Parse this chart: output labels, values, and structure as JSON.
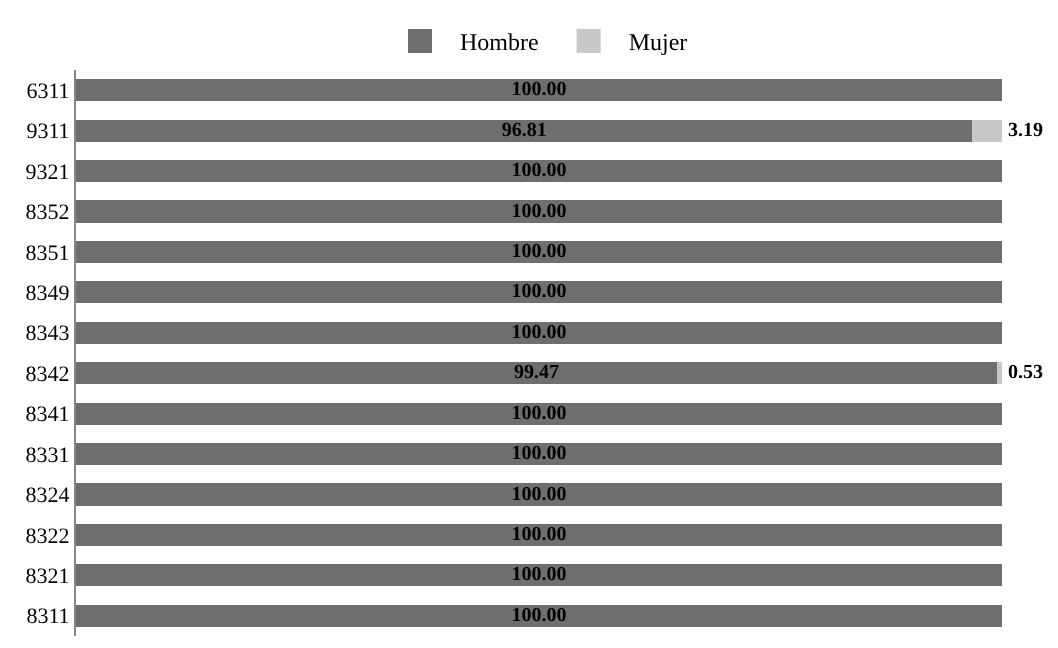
{
  "chart_data": {
    "type": "bar",
    "orientation": "horizontal",
    "stacked": true,
    "categories": [
      "6311",
      "9311",
      "9321",
      "8352",
      "8351",
      "8349",
      "8343",
      "8342",
      "8341",
      "8331",
      "8324",
      "8322",
      "8321",
      "8311"
    ],
    "series": [
      {
        "name": "Hombre",
        "color": "#6e6e6e",
        "values": [
          100,
          96.81,
          100,
          100,
          100,
          100,
          100,
          99.47,
          100,
          100,
          100,
          100,
          100,
          100
        ],
        "value_labels": [
          "100.00",
          "96.81",
          "100.00",
          "100.00",
          "100.00",
          "100.00",
          "100.00",
          "99.47",
          "100.00",
          "100.00",
          "100.00",
          "100.00",
          "100.00",
          "100.00"
        ]
      },
      {
        "name": "Mujer",
        "color": "#c8c8c8",
        "values": [
          0,
          3.19,
          0,
          0,
          0,
          0,
          0,
          0.53,
          0,
          0,
          0,
          0,
          0,
          0
        ],
        "value_labels": [
          null,
          "3.19",
          null,
          null,
          null,
          null,
          null,
          "0.53",
          null,
          null,
          null,
          null,
          null,
          null
        ]
      }
    ],
    "xlim": [
      0,
      100
    ],
    "tick_labels": "y",
    "legend": "top"
  }
}
